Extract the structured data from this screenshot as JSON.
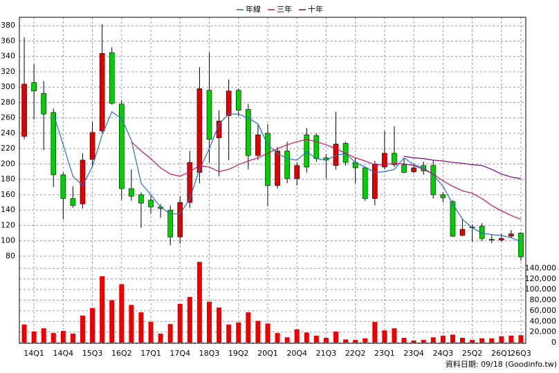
{
  "chart_data": {
    "type": "candlestick",
    "legend": "top",
    "grid": true,
    "source": "資料日期: 09/18 (Goodinfo.tw)",
    "categories": [
      null,
      "14Q1",
      null,
      null,
      "14Q4",
      null,
      null,
      "15Q3",
      null,
      null,
      "16Q2",
      null,
      null,
      "17Q1",
      null,
      null,
      "17Q4",
      null,
      null,
      "18Q3",
      null,
      null,
      "19Q2",
      null,
      null,
      "20Q1",
      null,
      null,
      "20Q4",
      null,
      null,
      "21Q3",
      null,
      null,
      "22Q2",
      null,
      null,
      "23Q1",
      null,
      null,
      "23Q4",
      null,
      null,
      "24Q3",
      null,
      null,
      "25Q2",
      null,
      null,
      "26Q1",
      null,
      "26Q3"
    ],
    "open": [
      236,
      306,
      292,
      267,
      186,
      155,
      148,
      206,
      243,
      345,
      278,
      168,
      160,
      153,
      144,
      140,
      105,
      150,
      189,
      296,
      234,
      263,
      296,
      271,
      211,
      240,
      172,
      217,
      181,
      238,
      237,
      208,
      198,
      227,
      202,
      195,
      155,
      196,
      214,
      199,
      190,
      198,
      198,
      160,
      151,
      107,
      118,
      119,
      102,
      101,
      106,
      110
    ],
    "high": [
      365,
      330,
      308,
      272,
      189,
      171,
      214,
      255,
      382,
      352,
      283,
      193,
      163,
      160,
      148,
      146,
      158,
      217,
      326,
      345,
      270,
      310,
      298,
      278,
      251,
      252,
      222,
      229,
      202,
      247,
      240,
      213,
      268,
      229,
      208,
      197,
      204,
      243,
      249,
      208,
      200,
      203,
      205,
      163,
      153,
      128,
      121,
      123,
      108,
      109,
      114,
      111
    ],
    "low": [
      232,
      258,
      218,
      170,
      128,
      143,
      142,
      197,
      240,
      277,
      153,
      152,
      117,
      135,
      130,
      94,
      96,
      143,
      175,
      202,
      184,
      205,
      262,
      193,
      205,
      145,
      168,
      175,
      172,
      189,
      203,
      181,
      193,
      198,
      175,
      152,
      146,
      193,
      196,
      188,
      188,
      186,
      155,
      150,
      105,
      106,
      99,
      100,
      97,
      99,
      104,
      74
    ],
    "close": [
      304,
      295,
      265,
      186,
      155,
      146,
      205,
      241,
      344,
      279,
      168,
      158,
      149,
      144,
      142,
      105,
      150,
      202,
      298,
      232,
      256,
      295,
      270,
      211,
      238,
      172,
      217,
      181,
      198,
      196,
      207,
      205,
      226,
      202,
      195,
      155,
      200,
      214,
      199,
      189,
      195,
      191,
      160,
      156,
      106,
      115,
      117,
      103,
      101,
      103,
      109,
      79
    ],
    "up_color": "#e00000",
    "down_color": "#00d000",
    "volume": {
      "axis": "y2",
      "color": "#ee0000",
      "values": [
        34000,
        21000,
        27000,
        18000,
        22000,
        17000,
        51000,
        65000,
        125000,
        80000,
        110000,
        71000,
        57000,
        39000,
        17000,
        35000,
        73000,
        86000,
        152000,
        77000,
        66000,
        34000,
        38000,
        57000,
        41000,
        36000,
        18000,
        10000,
        25000,
        19000,
        13000,
        9000,
        21000,
        6000,
        5000,
        8000,
        39000,
        23000,
        27000,
        9000,
        4000,
        5000,
        10000,
        13000,
        15000,
        9000,
        5000,
        8000,
        8000,
        12000,
        13000,
        14000
      ]
    },
    "series": [
      {
        "name": "年線",
        "color": "#1f6fd0",
        "values": [
          null,
          null,
          null,
          265,
          225,
          184,
          172,
          197,
          238,
          268,
          259,
          231,
          175,
          160,
          144,
          135,
          135,
          155,
          193,
          220,
          252,
          265,
          265,
          260,
          252,
          225,
          214,
          207,
          205,
          216,
          207,
          205,
          211,
          214,
          202,
          196,
          189,
          190,
          193,
          208,
          199,
          195,
          186,
          171,
          148,
          128,
          117,
          110,
          108,
          107,
          104,
          99
        ]
      },
      {
        "name": "三年",
        "color": "#d0105a",
        "values": [
          null,
          null,
          null,
          null,
          null,
          null,
          null,
          null,
          null,
          null,
          null,
          229,
          217,
          207,
          195,
          187,
          184,
          190,
          198,
          196,
          190,
          193,
          199,
          204,
          208,
          214,
          220,
          225,
          229,
          232,
          229,
          225,
          220,
          214,
          208,
          204,
          199,
          199,
          201,
          200,
          198,
          193,
          187,
          178,
          171,
          165,
          162,
          155,
          146,
          139,
          133,
          128
        ]
      },
      {
        "name": "十年",
        "color": "#800080",
        "values": [
          null,
          null,
          null,
          null,
          null,
          null,
          null,
          null,
          null,
          null,
          null,
          null,
          null,
          null,
          null,
          null,
          null,
          null,
          null,
          null,
          null,
          null,
          null,
          null,
          null,
          null,
          null,
          null,
          null,
          null,
          null,
          null,
          null,
          null,
          null,
          null,
          null,
          null,
          null,
          210,
          208,
          207,
          205,
          204,
          202,
          201,
          199,
          198,
          193,
          187,
          183,
          181
        ]
      }
    ],
    "ylim": [
      70,
      391
    ],
    "yticks": [
      80,
      100,
      120,
      140,
      160,
      180,
      200,
      220,
      240,
      260,
      280,
      300,
      320,
      340,
      360,
      380
    ],
    "y2lim": [
      0,
      160000
    ],
    "y2ticks": [
      0,
      {
        "value": 20000,
        "label": "20,000"
      },
      {
        "value": 40000,
        "label": "40,000"
      },
      {
        "value": 60000,
        "label": "60,000"
      },
      {
        "value": 80000,
        "label": "80,000"
      },
      {
        "value": 100000,
        "label": "100,000"
      },
      {
        "value": 120000,
        "label": "120,000"
      },
      {
        "value": 140000,
        "label": "140,000"
      }
    ]
  }
}
